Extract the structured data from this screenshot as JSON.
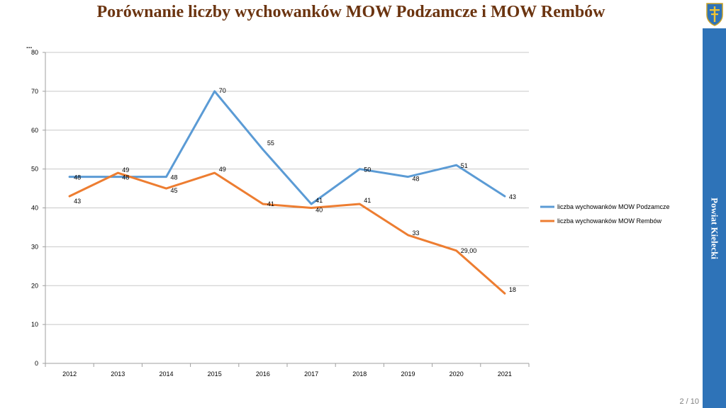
{
  "slide": {
    "title": "Porównanie liczby wychowanków MOW Podzamcze i MOW Rembów",
    "side_label": "Powiat Kielecki",
    "page_number": "2 / 10",
    "crest_icon": "coat-of-arms-icon",
    "accent_color": "#2e73b8",
    "title_color": "#6b3410"
  },
  "chart_data": {
    "type": "line",
    "title": "",
    "corner_mark": "...",
    "categories": [
      "2012",
      "2013",
      "2014",
      "2015",
      "2016",
      "2017",
      "2018",
      "2019",
      "2020",
      "2021"
    ],
    "ylim": [
      0,
      80
    ],
    "yticks": [
      0,
      10,
      20,
      30,
      40,
      50,
      60,
      70,
      80
    ],
    "grid": true,
    "legend_position": "right",
    "series": [
      {
        "name": "liczba wychowanków MOW Podzamcze",
        "color": "#5b9bd5",
        "values": [
          48,
          48,
          48,
          70,
          55,
          41,
          50,
          48,
          51,
          43
        ],
        "labels": [
          "48",
          "48",
          "48",
          "70",
          "55",
          "41",
          "50",
          "48",
          "51",
          "43"
        ]
      },
      {
        "name": "liczba wychowanków MOW Rembów",
        "color": "#ed7d31",
        "values": [
          43,
          49,
          45,
          49,
          41,
          40,
          41,
          33,
          29,
          18
        ],
        "labels": [
          "43",
          "49",
          "45",
          "49",
          "41",
          "40",
          "41",
          "33",
          "29,00",
          "18"
        ]
      }
    ]
  }
}
